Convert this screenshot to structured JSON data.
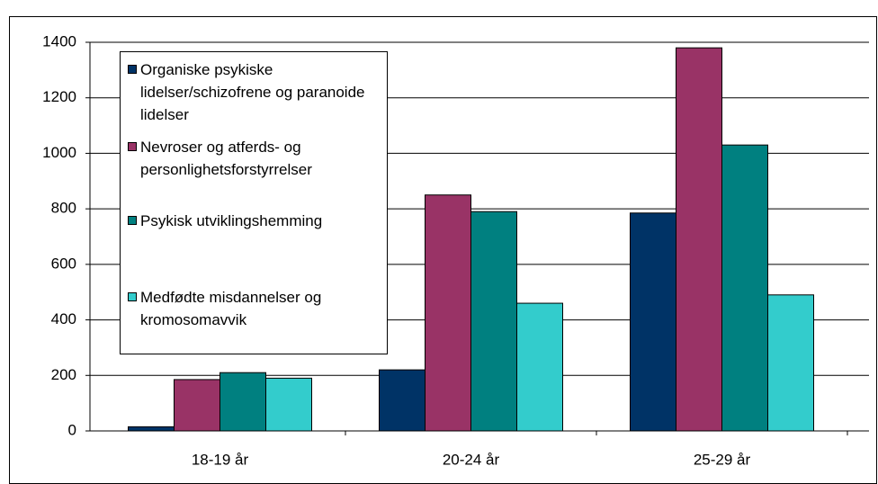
{
  "chart_data": {
    "type": "bar",
    "categories": [
      "18-19 år",
      "20-24 år",
      "25-29 år"
    ],
    "series": [
      {
        "name": "Organiske psykiske lidelser/schizofrene og paranoide lidelser",
        "color": "#003366",
        "values": [
          15,
          220,
          785
        ]
      },
      {
        "name": "Nevroser og atferds- og personlighetsforstyrrelser",
        "color": "#993366",
        "values": [
          185,
          850,
          1380
        ]
      },
      {
        "name": "Psykisk utviklingshemming",
        "color": "#008080",
        "values": [
          210,
          790,
          1030
        ]
      },
      {
        "name": "Medfødte misdannelser og kromosomavvik",
        "color": "#33cccc",
        "values": [
          190,
          460,
          490
        ]
      }
    ],
    "ylim": [
      0,
      1400
    ],
    "yticks": [
      0,
      200,
      400,
      600,
      800,
      1000,
      1200,
      1400
    ],
    "grid": true,
    "legend": "upper left"
  }
}
